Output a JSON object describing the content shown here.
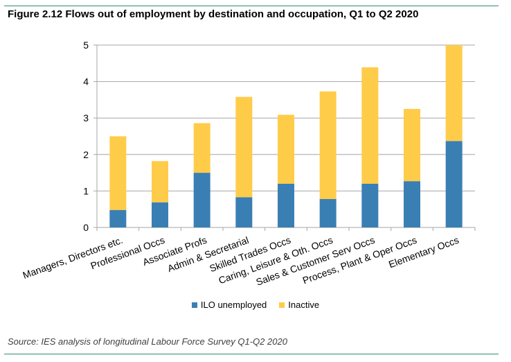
{
  "figure": {
    "title": "Figure 2.12 Flows out of employment by destination and occupation, Q1 to Q2 2020",
    "source": "Source: IES analysis of longitudinal Labour Force Survey Q1-Q2 2020"
  },
  "colors": {
    "ilo_unemployed": "#3a7fb4",
    "inactive": "#ffcc4a",
    "grid": "#a6a6a6",
    "rule": "#2e8b74"
  },
  "chart_data": {
    "type": "bar",
    "stacked": true,
    "title": "Figure 2.12 Flows out of employment by destination and occupation, Q1 to Q2 2020",
    "xlabel": "",
    "ylabel": "",
    "ylim": [
      0,
      5
    ],
    "yticks": [
      "0",
      "1",
      "2",
      "3",
      "4",
      "5"
    ],
    "grid": true,
    "legend_position": "bottom",
    "categories": [
      "Managers, Directors etc.",
      "Professional Occs",
      "Associate Profs",
      "Admin & Secretarial",
      "Skilled Trades Occs",
      "Caring, Leisure & Oth. Occs",
      "Sales & Customer Serv Occs",
      "Process, Plant & Oper Occs",
      "Elementary Occs"
    ],
    "series": [
      {
        "name": "ILO unemployed",
        "values": [
          0.48,
          0.69,
          1.5,
          0.83,
          1.2,
          0.78,
          1.2,
          1.27,
          2.37
        ]
      },
      {
        "name": "Inactive",
        "values": [
          2.02,
          1.13,
          1.36,
          2.75,
          1.89,
          2.95,
          3.19,
          1.98,
          2.63
        ]
      }
    ]
  }
}
